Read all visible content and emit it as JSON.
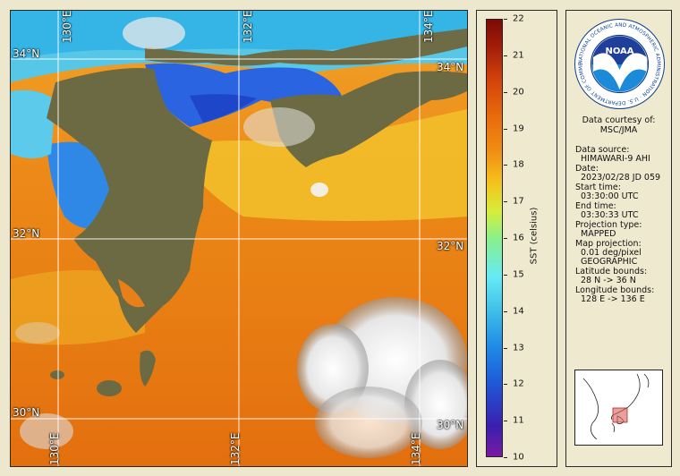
{
  "map": {
    "lon_labels": [
      "130°E",
      "132°E",
      "134°E"
    ],
    "lat_labels": [
      "34°N",
      "32°N",
      "30°N"
    ],
    "lon_range": [
      128,
      136
    ],
    "lat_range": [
      28,
      36
    ]
  },
  "scale": {
    "ticks": [
      "22",
      "21",
      "20",
      "19",
      "18",
      "17",
      "16",
      "15",
      "14",
      "13",
      "12",
      "11",
      "10"
    ],
    "min": 10,
    "max": 22,
    "title": "SST (celsius)"
  },
  "logo": {
    "text": "NOAA",
    "ring_text": "NATIONAL OCEANIC AND ATMOSPHERIC ADMINISTRATION · U.S. DEPARTMENT OF COMMERCE"
  },
  "info": {
    "courtesy_label": "Data courtesy of:",
    "courtesy_value": "MSC/JMA",
    "source_label": "Data source:",
    "source_value": "HIMAWARI-9 AHI",
    "date_label": "Date:",
    "date_value": "2023/02/28 JD 059",
    "start_label": "Start time:",
    "start_value": "03:30:00 UTC",
    "end_label": "End time:",
    "end_value": "03:30:33 UTC",
    "projtype_label": "Projection type:",
    "projtype_value": "MAPPED",
    "mapproj_label": "Map projection:",
    "mapproj_value1": "0.01 deg/pixel",
    "mapproj_value2": "GEOGRAPHIC",
    "lat_label": "Latitude bounds:",
    "lat_value": "28 N -> 36 N",
    "lon_label": "Longitude bounds:",
    "lon_value": "128 E -> 136 E"
  },
  "colors": {
    "ocean_warm": "#e8801a",
    "ocean_cool": "#2f7fe6",
    "land": "#6b6a42",
    "grid": "#ffffff",
    "panel_bg": "#efeacf"
  }
}
